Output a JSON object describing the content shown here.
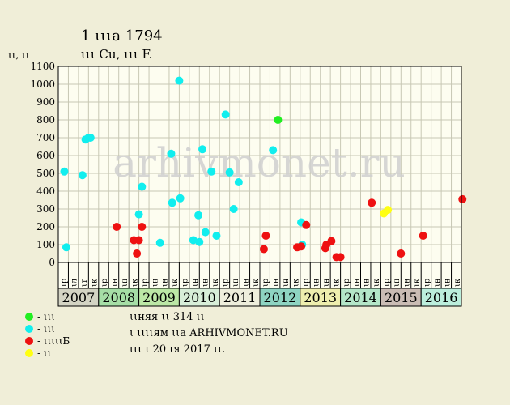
{
  "header": {
    "title": "1 ꙇꙇꙇа 1794",
    "subtitle": "ꙇꙇꙇ Cu, ꙇꙇꙇ F.",
    "ylabel": "ꙇꙇ, ꙇꙇ"
  },
  "watermark": "arhivmonet.ru",
  "colors": {
    "background": "#f0eed8",
    "plot_bg": "#fdfdf0",
    "grid": "#c8c8b4",
    "green": "#22ee22",
    "cyan": "#11eeee",
    "red": "#ee1111",
    "yellow": "#ffff11"
  },
  "legend": [
    {
      "label": "- ꙇꙇꙇ",
      "color": "#22ee22"
    },
    {
      "label": "- ꙇꙇꙇ",
      "color": "#11eeee"
    },
    {
      "label": "- ꙇꙇꙇꙇꙇБ",
      "color": "#ee1111"
    },
    {
      "label": "- ꙇꙇ",
      "color": "#ffff11"
    }
  ],
  "notes": [
    "ꙇꙇняя ꙇꙇ 314 ꙇꙇ",
    "ꙇ ꙇꙇꙇꙇям ꙇꙇа ARHIVMONET.RU",
    "ꙇꙇꙇ ꙇ 20 ꙇя 2017 ꙇꙇ."
  ],
  "chart_data": {
    "type": "scatter",
    "ylim": [
      0,
      1100
    ],
    "yticks": [
      "0",
      "100",
      "200",
      "300",
      "400",
      "500",
      "600",
      "700",
      "800",
      "900",
      "1000",
      "1100"
    ],
    "x_slots": [
      "ꙇр",
      "ꙇл",
      "ꙇт",
      "ꙇк",
      "ꙇр",
      "ꙇн",
      "ꙇн",
      "ꙇк",
      "ꙇр",
      "ꙇн",
      "ꙇн",
      "ꙇк",
      "ꙇр",
      "ꙇн",
      "ꙇн",
      "ꙇк",
      "ꙇр",
      "ꙇн",
      "ꙇн",
      "ꙇк",
      "ꙇр",
      "ꙇн",
      "ꙇн",
      "ꙇк",
      "ꙇр",
      "ꙇн",
      "ꙇн",
      "ꙇк",
      "ꙇр",
      "ꙇн",
      "ꙇн",
      "ꙇк",
      "ꙇр",
      "ꙇн",
      "ꙇн",
      "ꙇк",
      "ꙇр",
      "ꙇн",
      "ꙇн",
      "ꙇк"
    ],
    "years": [
      {
        "label": "2007",
        "start": 0,
        "color": "#d4d4c4"
      },
      {
        "label": "2008",
        "start": 4,
        "color": "#a6dea6"
      },
      {
        "label": "2009",
        "start": 8,
        "color": "#bce8a6"
      },
      {
        "label": "2010",
        "start": 12,
        "color": "#d8eed8"
      },
      {
        "label": "2011",
        "start": 16,
        "color": "#eeeedc"
      },
      {
        "label": "2012",
        "start": 20,
        "color": "#8ed4c2"
      },
      {
        "label": "2013",
        "start": 24,
        "color": "#eeeeae"
      },
      {
        "label": "2014",
        "start": 28,
        "color": "#b4e6c8"
      },
      {
        "label": "2015",
        "start": 32,
        "color": "#cabcb4"
      },
      {
        "label": "2016",
        "start": 36,
        "color": "#bceedc"
      }
    ],
    "series": [
      {
        "color": "#22ee22",
        "points": [
          [
            21.3,
            800
          ]
        ]
      },
      {
        "color": "#11eeee",
        "points": [
          [
            0.1,
            510
          ],
          [
            0.3,
            85
          ],
          [
            1.9,
            490
          ],
          [
            2.2,
            690
          ],
          [
            2.5,
            700
          ],
          [
            2.7,
            700
          ],
          [
            7.5,
            270
          ],
          [
            7.8,
            425
          ],
          [
            9.6,
            110
          ],
          [
            10.7,
            610
          ],
          [
            10.8,
            335
          ],
          [
            11.5,
            1020
          ],
          [
            11.6,
            360
          ],
          [
            12.9,
            125
          ],
          [
            13.4,
            265
          ],
          [
            13.5,
            115
          ],
          [
            13.8,
            635
          ],
          [
            14.1,
            170
          ],
          [
            14.7,
            510
          ],
          [
            15.2,
            150
          ],
          [
            16.1,
            830
          ],
          [
            16.5,
            505
          ],
          [
            16.9,
            300
          ],
          [
            17.4,
            450
          ],
          [
            20.8,
            630
          ],
          [
            23.6,
            225
          ],
          [
            23.7,
            100
          ]
        ]
      },
      {
        "color": "#ee1111",
        "points": [
          [
            5.3,
            200
          ],
          [
            7.0,
            125
          ],
          [
            7.3,
            50
          ],
          [
            7.5,
            125
          ],
          [
            7.8,
            200
          ],
          [
            19.9,
            75
          ],
          [
            20.1,
            150
          ],
          [
            23.2,
            85
          ],
          [
            23.6,
            90
          ],
          [
            24.1,
            210
          ],
          [
            26.0,
            80
          ],
          [
            26.1,
            100
          ],
          [
            26.6,
            120
          ],
          [
            27.1,
            30
          ],
          [
            27.5,
            30
          ],
          [
            30.6,
            335
          ],
          [
            33.5,
            50
          ],
          [
            35.7,
            150
          ],
          [
            39.6,
            355
          ]
        ]
      },
      {
        "color": "#ffff11",
        "points": [
          [
            31.8,
            275
          ],
          [
            32.2,
            295
          ]
        ]
      }
    ]
  }
}
